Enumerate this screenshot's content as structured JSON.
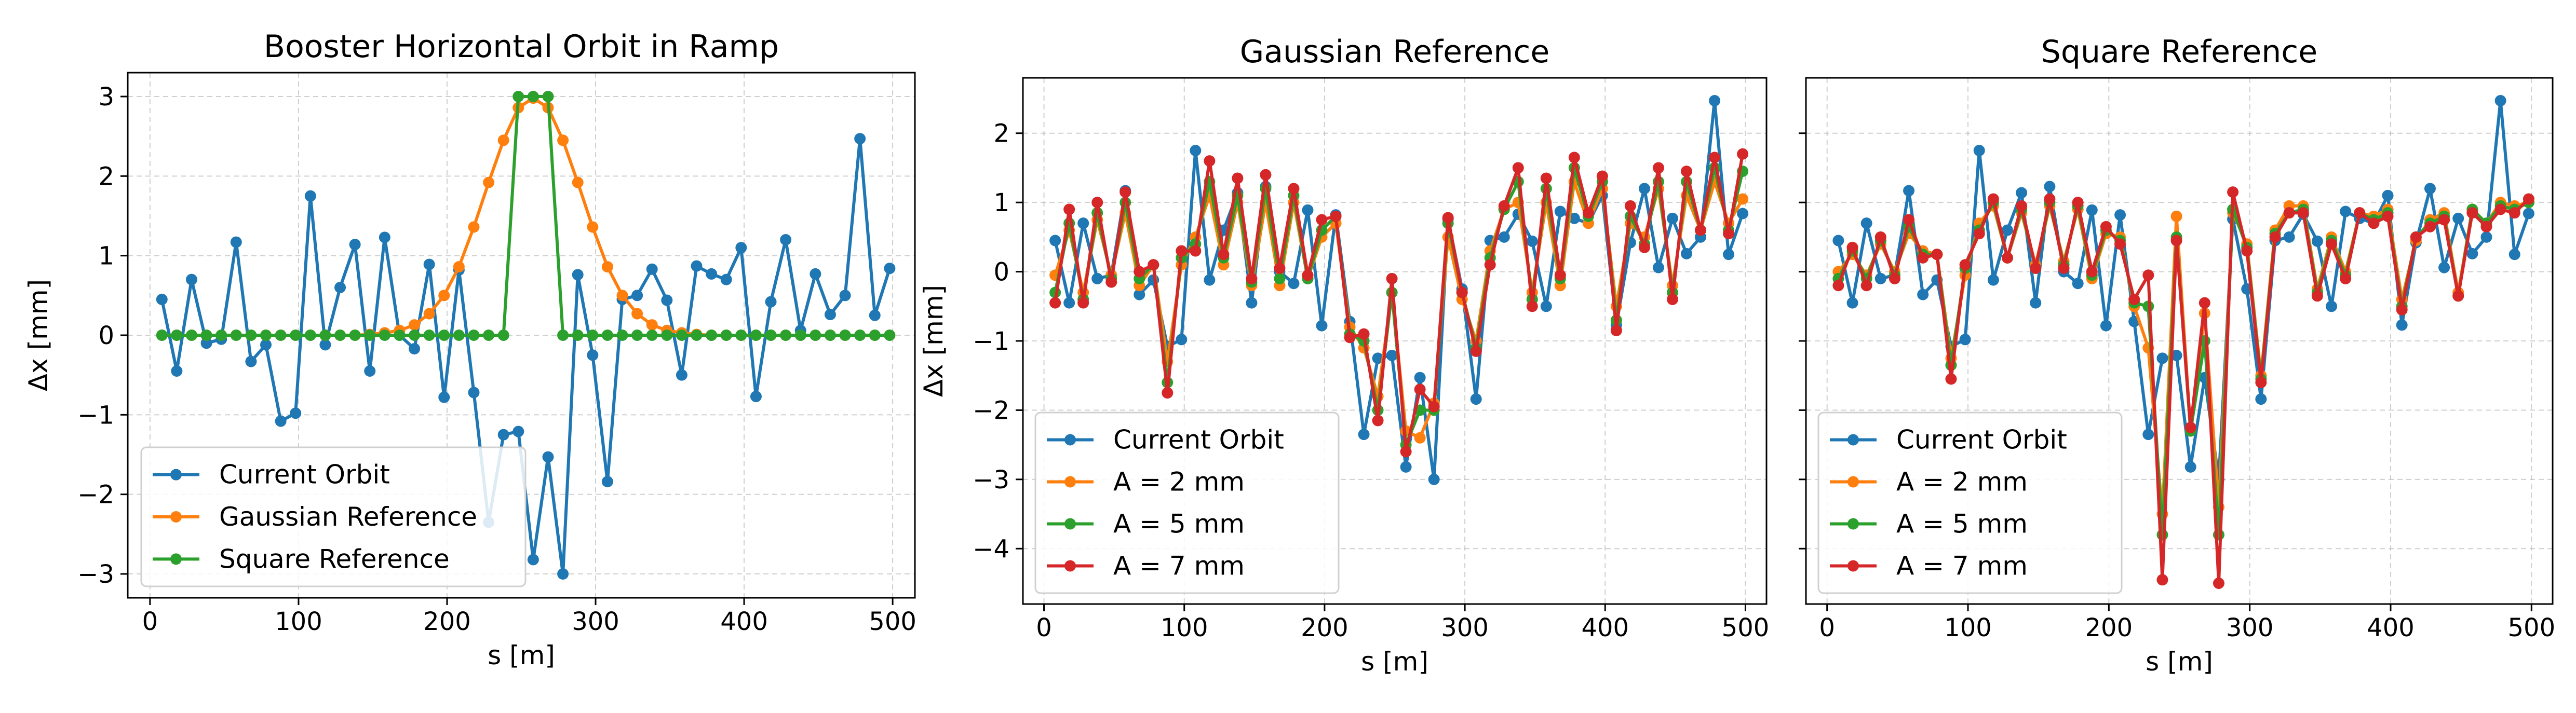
{
  "colors": {
    "current": "#1f77b4",
    "gaussian": "#ff7f0e",
    "square": "#2ca02c",
    "a7": "#d62728",
    "grid": "#b0b0b0"
  },
  "chart_data": [
    {
      "type": "line",
      "title": "Booster Horizontal Orbit in Ramp",
      "xlabel": "s [m]",
      "ylabel": "Δx [mm]",
      "xlim": [
        -15,
        515
      ],
      "ylim": [
        -3.3,
        3.3
      ],
      "xticks": [
        0,
        100,
        200,
        300,
        400,
        500
      ],
      "xtick_labels": [
        "0",
        "100",
        "200",
        "300",
        "400",
        "500"
      ],
      "yticks": [
        -3,
        -2,
        -1,
        0,
        1,
        2,
        3
      ],
      "ytick_labels": [
        "−3",
        "−2",
        "−1",
        "0",
        "1",
        "2",
        "3"
      ],
      "grid": true,
      "legend_position": "lower-left",
      "x": [
        8,
        18,
        28,
        38,
        48,
        58,
        68,
        78,
        88,
        98,
        108,
        118,
        128,
        138,
        148,
        158,
        168,
        178,
        188,
        198,
        208,
        218,
        228,
        238,
        248,
        258,
        268,
        278,
        288,
        298,
        308,
        318,
        328,
        338,
        348,
        358,
        368,
        378,
        388,
        398,
        408,
        418,
        428,
        438,
        448,
        458,
        468,
        478,
        488,
        498
      ],
      "series": [
        {
          "name": "Current Orbit",
          "color_key": "current",
          "values": [
            0.45,
            -0.45,
            0.7,
            -0.1,
            -0.05,
            1.17,
            -0.33,
            -0.12,
            -1.08,
            -0.98,
            1.75,
            -0.12,
            0.6,
            1.14,
            -0.45,
            1.23,
            0.0,
            -0.17,
            0.89,
            -0.78,
            0.82,
            -0.72,
            -2.35,
            -1.25,
            -1.21,
            -2.82,
            -1.53,
            -3.0,
            0.76,
            -0.25,
            -1.84,
            0.45,
            0.5,
            0.83,
            0.44,
            -0.5,
            0.87,
            0.77,
            0.7,
            1.1,
            -0.77,
            0.42,
            1.2,
            0.06,
            0.77,
            0.26,
            0.5,
            2.47,
            0.25,
            0.84
          ]
        },
        {
          "name": "Gaussian Reference",
          "color_key": "gaussian",
          "values": [
            0,
            0,
            0,
            0,
            0,
            0,
            0,
            0,
            0,
            0,
            0,
            0,
            0,
            0,
            0.01,
            0.03,
            0.06,
            0.13,
            0.27,
            0.5,
            0.86,
            1.36,
            1.92,
            2.45,
            2.86,
            2.98,
            2.86,
            2.45,
            1.92,
            1.36,
            0.86,
            0.5,
            0.27,
            0.13,
            0.06,
            0.03,
            0.01,
            0,
            0,
            0,
            0,
            0,
            0,
            0,
            0,
            0,
            0,
            0,
            0,
            0
          ]
        },
        {
          "name": "Square Reference",
          "color_key": "square",
          "values": [
            0,
            0,
            0,
            0,
            0,
            0,
            0,
            0,
            0,
            0,
            0,
            0,
            0,
            0,
            0,
            0,
            0,
            0,
            0,
            0,
            0,
            0,
            0,
            0,
            3,
            3,
            3,
            0,
            0,
            0,
            0,
            0,
            0,
            0,
            0,
            0,
            0,
            0,
            0,
            0,
            0,
            0,
            0,
            0,
            0,
            0,
            0,
            0,
            0,
            0
          ]
        }
      ]
    },
    {
      "type": "line",
      "title": "Gaussian Reference",
      "xlabel": "s [m]",
      "ylabel": "Δx [mm]",
      "xlim": [
        -15,
        515
      ],
      "ylim": [
        -4.8,
        2.8
      ],
      "xticks": [
        0,
        100,
        200,
        300,
        400,
        500
      ],
      "xtick_labels": [
        "0",
        "100",
        "200",
        "300",
        "400",
        "500"
      ],
      "yticks": [
        -4,
        -3,
        -2,
        -1,
        0,
        1,
        2
      ],
      "ytick_labels": [
        "−4",
        "−3",
        "−2",
        "−1",
        "0",
        "1",
        "2"
      ],
      "grid": true,
      "legend_position": "lower-left",
      "x": [
        8,
        18,
        28,
        38,
        48,
        58,
        68,
        78,
        88,
        98,
        108,
        118,
        128,
        138,
        148,
        158,
        168,
        178,
        188,
        198,
        208,
        218,
        228,
        238,
        248,
        258,
        268,
        278,
        288,
        298,
        308,
        318,
        328,
        338,
        348,
        358,
        368,
        378,
        388,
        398,
        408,
        418,
        428,
        438,
        448,
        458,
        468,
        478,
        488,
        498
      ],
      "series": [
        {
          "name": "Current Orbit",
          "color_key": "current",
          "values": [
            0.45,
            -0.45,
            0.7,
            -0.1,
            -0.05,
            1.17,
            -0.33,
            -0.12,
            -1.08,
            -0.98,
            1.75,
            -0.12,
            0.6,
            1.14,
            -0.45,
            1.23,
            0.0,
            -0.17,
            0.89,
            -0.78,
            0.82,
            -0.72,
            -2.35,
            -1.25,
            -1.21,
            -2.82,
            -1.53,
            -3.0,
            0.76,
            -0.25,
            -1.84,
            0.45,
            0.5,
            0.83,
            0.44,
            -0.5,
            0.87,
            0.77,
            0.7,
            1.1,
            -0.77,
            0.42,
            1.2,
            0.06,
            0.77,
            0.26,
            0.5,
            2.47,
            0.25,
            0.84
          ]
        },
        {
          "name": "A = 2 mm",
          "color_key": "gaussian",
          "values": [
            -0.05,
            0.6,
            -0.3,
            0.75,
            -0.05,
            0.85,
            -0.2,
            0.1,
            -1.3,
            0.1,
            0.5,
            1.1,
            0.1,
            1.0,
            -0.2,
            1.0,
            -0.2,
            1.0,
            -0.1,
            0.5,
            0.7,
            -0.8,
            -1.1,
            -1.8,
            -0.3,
            -2.3,
            -2.4,
            -1.9,
            0.5,
            -0.4,
            -1.0,
            0.3,
            0.9,
            1.0,
            -0.3,
            1.0,
            -0.2,
            1.3,
            0.7,
            1.2,
            -0.5,
            0.7,
            0.5,
            1.2,
            -0.2,
            1.1,
            0.6,
            1.3,
            0.7,
            1.05
          ]
        },
        {
          "name": "A = 5 mm",
          "color_key": "square",
          "values": [
            -0.3,
            0.7,
            -0.4,
            0.85,
            -0.1,
            1.0,
            -0.1,
            0.1,
            -1.6,
            0.2,
            0.4,
            1.3,
            0.2,
            1.1,
            -0.15,
            1.2,
            -0.1,
            1.1,
            -0.1,
            0.6,
            0.8,
            -0.9,
            -1.0,
            -2.0,
            -0.3,
            -2.5,
            -2.0,
            -2.0,
            0.7,
            -0.3,
            -1.1,
            0.2,
            0.9,
            1.3,
            -0.4,
            1.2,
            -0.1,
            1.5,
            0.8,
            1.3,
            -0.7,
            0.8,
            0.4,
            1.3,
            -0.3,
            1.3,
            0.6,
            1.5,
            0.6,
            1.45
          ]
        },
        {
          "name": "A = 7 mm",
          "color_key": "a7",
          "values": [
            -0.45,
            0.9,
            -0.45,
            1.0,
            -0.15,
            1.15,
            0.0,
            0.1,
            -1.75,
            0.3,
            0.3,
            1.6,
            0.25,
            1.35,
            -0.1,
            1.4,
            0.05,
            1.2,
            -0.05,
            0.75,
            0.8,
            -0.95,
            -0.9,
            -2.15,
            -0.1,
            -2.6,
            -1.7,
            -1.95,
            0.78,
            -0.3,
            -1.15,
            0.1,
            0.95,
            1.5,
            -0.5,
            1.35,
            -0.05,
            1.65,
            0.85,
            1.38,
            -0.85,
            0.95,
            0.35,
            1.5,
            -0.4,
            1.45,
            0.6,
            1.65,
            0.55,
            1.7
          ]
        }
      ]
    },
    {
      "type": "line",
      "title": "Square Reference",
      "xlabel": "s [m]",
      "ylabel": "",
      "xlim": [
        -15,
        515
      ],
      "ylim": [
        -4.8,
        2.8
      ],
      "xticks": [
        0,
        100,
        200,
        300,
        400,
        500
      ],
      "xtick_labels": [
        "0",
        "100",
        "200",
        "300",
        "400",
        "500"
      ],
      "yticks": [
        -4,
        -3,
        -2,
        -1,
        0,
        1,
        2
      ],
      "ytick_labels": [],
      "grid": true,
      "legend_position": "lower-left",
      "x": [
        8,
        18,
        28,
        38,
        48,
        58,
        68,
        78,
        88,
        98,
        108,
        118,
        128,
        138,
        148,
        158,
        168,
        178,
        188,
        198,
        208,
        218,
        228,
        238,
        248,
        258,
        268,
        278,
        288,
        298,
        308,
        318,
        328,
        338,
        348,
        358,
        368,
        378,
        388,
        398,
        408,
        418,
        428,
        438,
        448,
        458,
        468,
        478,
        488,
        498
      ],
      "series": [
        {
          "name": "Current Orbit",
          "color_key": "current",
          "values": [
            0.45,
            -0.45,
            0.7,
            -0.1,
            -0.05,
            1.17,
            -0.33,
            -0.12,
            -1.08,
            -0.98,
            1.75,
            -0.12,
            0.6,
            1.14,
            -0.45,
            1.23,
            0.0,
            -0.17,
            0.89,
            -0.78,
            0.82,
            -0.72,
            -2.35,
            -1.25,
            -1.21,
            -2.82,
            -1.53,
            -3.0,
            0.76,
            -0.25,
            -1.84,
            0.45,
            0.5,
            0.83,
            0.44,
            -0.5,
            0.87,
            0.77,
            0.7,
            1.1,
            -0.77,
            0.42,
            1.2,
            0.06,
            0.77,
            0.26,
            0.5,
            2.47,
            0.25,
            0.84
          ]
        },
        {
          "name": "A = 2 mm",
          "color_key": "gaussian",
          "values": [
            0.0,
            0.25,
            -0.05,
            0.4,
            0.0,
            0.55,
            0.3,
            0.25,
            -1.25,
            -0.05,
            0.7,
            0.95,
            0.2,
            0.85,
            0.1,
            0.95,
            0.15,
            0.9,
            -0.1,
            0.55,
            0.5,
            -0.5,
            -1.1,
            -3.5,
            0.8,
            -2.3,
            -0.6,
            -3.4,
            0.85,
            0.4,
            -1.5,
            0.6,
            0.95,
            0.95,
            -0.25,
            0.5,
            0.0,
            0.85,
            0.8,
            0.9,
            -0.4,
            0.45,
            0.75,
            0.85,
            -0.3,
            0.9,
            0.7,
            1.0,
            0.95,
            1.0
          ]
        },
        {
          "name": "A = 5 mm",
          "color_key": "square",
          "values": [
            -0.1,
            0.3,
            -0.1,
            0.45,
            -0.05,
            0.65,
            0.25,
            0.25,
            -1.35,
            0.05,
            0.6,
            1.0,
            0.2,
            0.9,
            0.05,
            1.0,
            0.1,
            0.95,
            -0.05,
            0.6,
            0.45,
            -0.45,
            -0.5,
            -3.8,
            0.5,
            -2.3,
            -1.0,
            -3.8,
            0.9,
            0.35,
            -1.55,
            0.55,
            0.85,
            0.9,
            -0.3,
            0.45,
            -0.05,
            0.85,
            0.75,
            0.85,
            -0.5,
            0.5,
            0.7,
            0.8,
            -0.35,
            0.9,
            0.7,
            0.95,
            0.9,
            1.0
          ]
        },
        {
          "name": "A = 7 mm",
          "color_key": "a7",
          "values": [
            -0.2,
            0.35,
            -0.2,
            0.5,
            -0.1,
            0.75,
            0.2,
            0.25,
            -1.55,
            0.1,
            0.55,
            1.05,
            0.2,
            0.95,
            0.05,
            1.05,
            0.05,
            1.0,
            0.0,
            0.65,
            0.4,
            -0.4,
            -0.05,
            -4.45,
            0.45,
            -2.25,
            -0.45,
            -4.5,
            1.15,
            0.3,
            -1.6,
            0.5,
            0.85,
            0.85,
            -0.35,
            0.4,
            -0.1,
            0.85,
            0.7,
            0.8,
            -0.55,
            0.5,
            0.65,
            0.75,
            -0.35,
            0.85,
            0.65,
            0.9,
            0.85,
            1.05
          ]
        }
      ]
    }
  ]
}
